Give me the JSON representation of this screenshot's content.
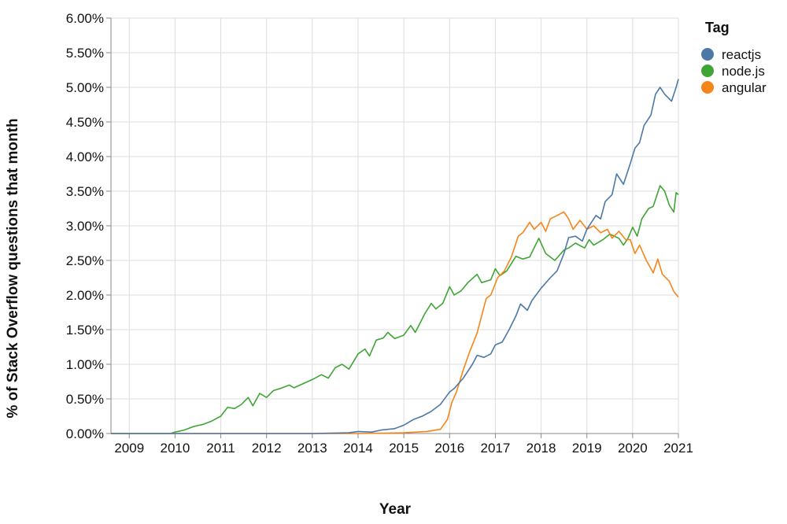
{
  "chart_data": {
    "type": "line",
    "xlabel": "Year",
    "ylabel": "% of Stack Overflow questions that month",
    "xlim": [
      2008.6,
      2021.0
    ],
    "ylim": [
      0,
      6.0
    ],
    "x_ticks": [
      "2009",
      "2010",
      "2011",
      "2012",
      "2013",
      "2014",
      "2015",
      "2016",
      "2017",
      "2018",
      "2019",
      "2020",
      "2021"
    ],
    "y_ticks": [
      "0.00%",
      "0.50%",
      "1.00%",
      "1.50%",
      "2.00%",
      "2.50%",
      "3.00%",
      "3.50%",
      "4.00%",
      "4.50%",
      "5.00%",
      "5.50%",
      "6.00%"
    ],
    "grid": true,
    "legend": {
      "title": "Tag",
      "placement": "top-right"
    },
    "series": [
      {
        "name": "reactjs",
        "color": "#4c78a8",
        "points": [
          [
            2008.6,
            0
          ],
          [
            2013.0,
            0.0
          ],
          [
            2013.8,
            0.01
          ],
          [
            2014.0,
            0.03
          ],
          [
            2014.3,
            0.02
          ],
          [
            2014.5,
            0.05
          ],
          [
            2014.8,
            0.07
          ],
          [
            2015.0,
            0.12
          ],
          [
            2015.2,
            0.2
          ],
          [
            2015.4,
            0.25
          ],
          [
            2015.6,
            0.32
          ],
          [
            2015.8,
            0.42
          ],
          [
            2016.0,
            0.6
          ],
          [
            2016.1,
            0.65
          ],
          [
            2016.3,
            0.8
          ],
          [
            2016.5,
            1.0
          ],
          [
            2016.6,
            1.13
          ],
          [
            2016.75,
            1.1
          ],
          [
            2016.9,
            1.15
          ],
          [
            2017.0,
            1.28
          ],
          [
            2017.15,
            1.32
          ],
          [
            2017.3,
            1.5
          ],
          [
            2017.45,
            1.7
          ],
          [
            2017.55,
            1.87
          ],
          [
            2017.7,
            1.78
          ],
          [
            2017.8,
            1.92
          ],
          [
            2018.0,
            2.1
          ],
          [
            2018.2,
            2.25
          ],
          [
            2018.35,
            2.35
          ],
          [
            2018.5,
            2.6
          ],
          [
            2018.6,
            2.83
          ],
          [
            2018.75,
            2.85
          ],
          [
            2018.9,
            2.78
          ],
          [
            2019.0,
            2.95
          ],
          [
            2019.2,
            3.15
          ],
          [
            2019.3,
            3.1
          ],
          [
            2019.4,
            3.35
          ],
          [
            2019.55,
            3.45
          ],
          [
            2019.65,
            3.75
          ],
          [
            2019.8,
            3.6
          ],
          [
            2019.95,
            3.9
          ],
          [
            2020.05,
            4.12
          ],
          [
            2020.15,
            4.2
          ],
          [
            2020.25,
            4.45
          ],
          [
            2020.4,
            4.6
          ],
          [
            2020.5,
            4.9
          ],
          [
            2020.6,
            5.0
          ],
          [
            2020.7,
            4.9
          ],
          [
            2020.85,
            4.8
          ],
          [
            2020.95,
            5.0
          ],
          [
            2021.0,
            5.12
          ]
        ]
      },
      {
        "name": "node.js",
        "color": "#3fa535",
        "points": [
          [
            2008.6,
            0
          ],
          [
            2009.9,
            0.0
          ],
          [
            2010.0,
            0.02
          ],
          [
            2010.2,
            0.05
          ],
          [
            2010.4,
            0.1
          ],
          [
            2010.6,
            0.13
          ],
          [
            2010.8,
            0.18
          ],
          [
            2011.0,
            0.25
          ],
          [
            2011.15,
            0.38
          ],
          [
            2011.3,
            0.36
          ],
          [
            2011.45,
            0.42
          ],
          [
            2011.6,
            0.52
          ],
          [
            2011.7,
            0.4
          ],
          [
            2011.85,
            0.58
          ],
          [
            2012.0,
            0.52
          ],
          [
            2012.15,
            0.62
          ],
          [
            2012.3,
            0.65
          ],
          [
            2012.5,
            0.7
          ],
          [
            2012.6,
            0.66
          ],
          [
            2012.8,
            0.72
          ],
          [
            2013.0,
            0.78
          ],
          [
            2013.2,
            0.85
          ],
          [
            2013.35,
            0.8
          ],
          [
            2013.5,
            0.95
          ],
          [
            2013.65,
            1.0
          ],
          [
            2013.8,
            0.93
          ],
          [
            2014.0,
            1.15
          ],
          [
            2014.15,
            1.22
          ],
          [
            2014.25,
            1.12
          ],
          [
            2014.4,
            1.35
          ],
          [
            2014.55,
            1.38
          ],
          [
            2014.65,
            1.46
          ],
          [
            2014.8,
            1.37
          ],
          [
            2015.0,
            1.42
          ],
          [
            2015.15,
            1.56
          ],
          [
            2015.25,
            1.46
          ],
          [
            2015.45,
            1.72
          ],
          [
            2015.6,
            1.88
          ],
          [
            2015.7,
            1.8
          ],
          [
            2015.85,
            1.88
          ],
          [
            2016.0,
            2.12
          ],
          [
            2016.1,
            2.0
          ],
          [
            2016.25,
            2.06
          ],
          [
            2016.4,
            2.18
          ],
          [
            2016.6,
            2.3
          ],
          [
            2016.7,
            2.18
          ],
          [
            2016.9,
            2.22
          ],
          [
            2017.0,
            2.38
          ],
          [
            2017.1,
            2.28
          ],
          [
            2017.25,
            2.35
          ],
          [
            2017.45,
            2.56
          ],
          [
            2017.6,
            2.52
          ],
          [
            2017.75,
            2.55
          ],
          [
            2017.95,
            2.82
          ],
          [
            2018.1,
            2.6
          ],
          [
            2018.3,
            2.5
          ],
          [
            2018.5,
            2.65
          ],
          [
            2018.6,
            2.68
          ],
          [
            2018.75,
            2.75
          ],
          [
            2018.95,
            2.68
          ],
          [
            2019.05,
            2.8
          ],
          [
            2019.15,
            2.72
          ],
          [
            2019.35,
            2.8
          ],
          [
            2019.5,
            2.88
          ],
          [
            2019.7,
            2.82
          ],
          [
            2019.8,
            2.72
          ],
          [
            2019.9,
            2.82
          ],
          [
            2020.0,
            2.98
          ],
          [
            2020.1,
            2.85
          ],
          [
            2020.2,
            3.1
          ],
          [
            2020.35,
            3.25
          ],
          [
            2020.45,
            3.28
          ],
          [
            2020.6,
            3.58
          ],
          [
            2020.7,
            3.5
          ],
          [
            2020.8,
            3.3
          ],
          [
            2020.9,
            3.2
          ],
          [
            2020.95,
            3.48
          ],
          [
            2021.0,
            3.45
          ]
        ]
      },
      {
        "name": "angular",
        "color": "#f58518",
        "points": [
          [
            2008.6,
            0
          ],
          [
            2014.0,
            0.0
          ],
          [
            2015.0,
            0.01
          ],
          [
            2015.5,
            0.03
          ],
          [
            2015.8,
            0.06
          ],
          [
            2015.95,
            0.2
          ],
          [
            2016.05,
            0.45
          ],
          [
            2016.15,
            0.6
          ],
          [
            2016.3,
            0.92
          ],
          [
            2016.45,
            1.2
          ],
          [
            2016.6,
            1.45
          ],
          [
            2016.7,
            1.7
          ],
          [
            2016.8,
            1.95
          ],
          [
            2016.9,
            2.0
          ],
          [
            2017.05,
            2.25
          ],
          [
            2017.2,
            2.35
          ],
          [
            2017.35,
            2.55
          ],
          [
            2017.5,
            2.85
          ],
          [
            2017.6,
            2.9
          ],
          [
            2017.75,
            3.05
          ],
          [
            2017.85,
            2.95
          ],
          [
            2018.0,
            3.05
          ],
          [
            2018.1,
            2.92
          ],
          [
            2018.2,
            3.1
          ],
          [
            2018.35,
            3.15
          ],
          [
            2018.5,
            3.2
          ],
          [
            2018.6,
            3.1
          ],
          [
            2018.7,
            2.95
          ],
          [
            2018.85,
            3.08
          ],
          [
            2019.0,
            2.95
          ],
          [
            2019.15,
            3.0
          ],
          [
            2019.3,
            2.9
          ],
          [
            2019.45,
            2.95
          ],
          [
            2019.55,
            2.82
          ],
          [
            2019.7,
            2.92
          ],
          [
            2019.85,
            2.8
          ],
          [
            2019.95,
            2.8
          ],
          [
            2020.05,
            2.6
          ],
          [
            2020.15,
            2.72
          ],
          [
            2020.3,
            2.5
          ],
          [
            2020.45,
            2.32
          ],
          [
            2020.55,
            2.52
          ],
          [
            2020.65,
            2.3
          ],
          [
            2020.8,
            2.2
          ],
          [
            2020.9,
            2.05
          ],
          [
            2021.0,
            1.97
          ]
        ]
      }
    ]
  }
}
